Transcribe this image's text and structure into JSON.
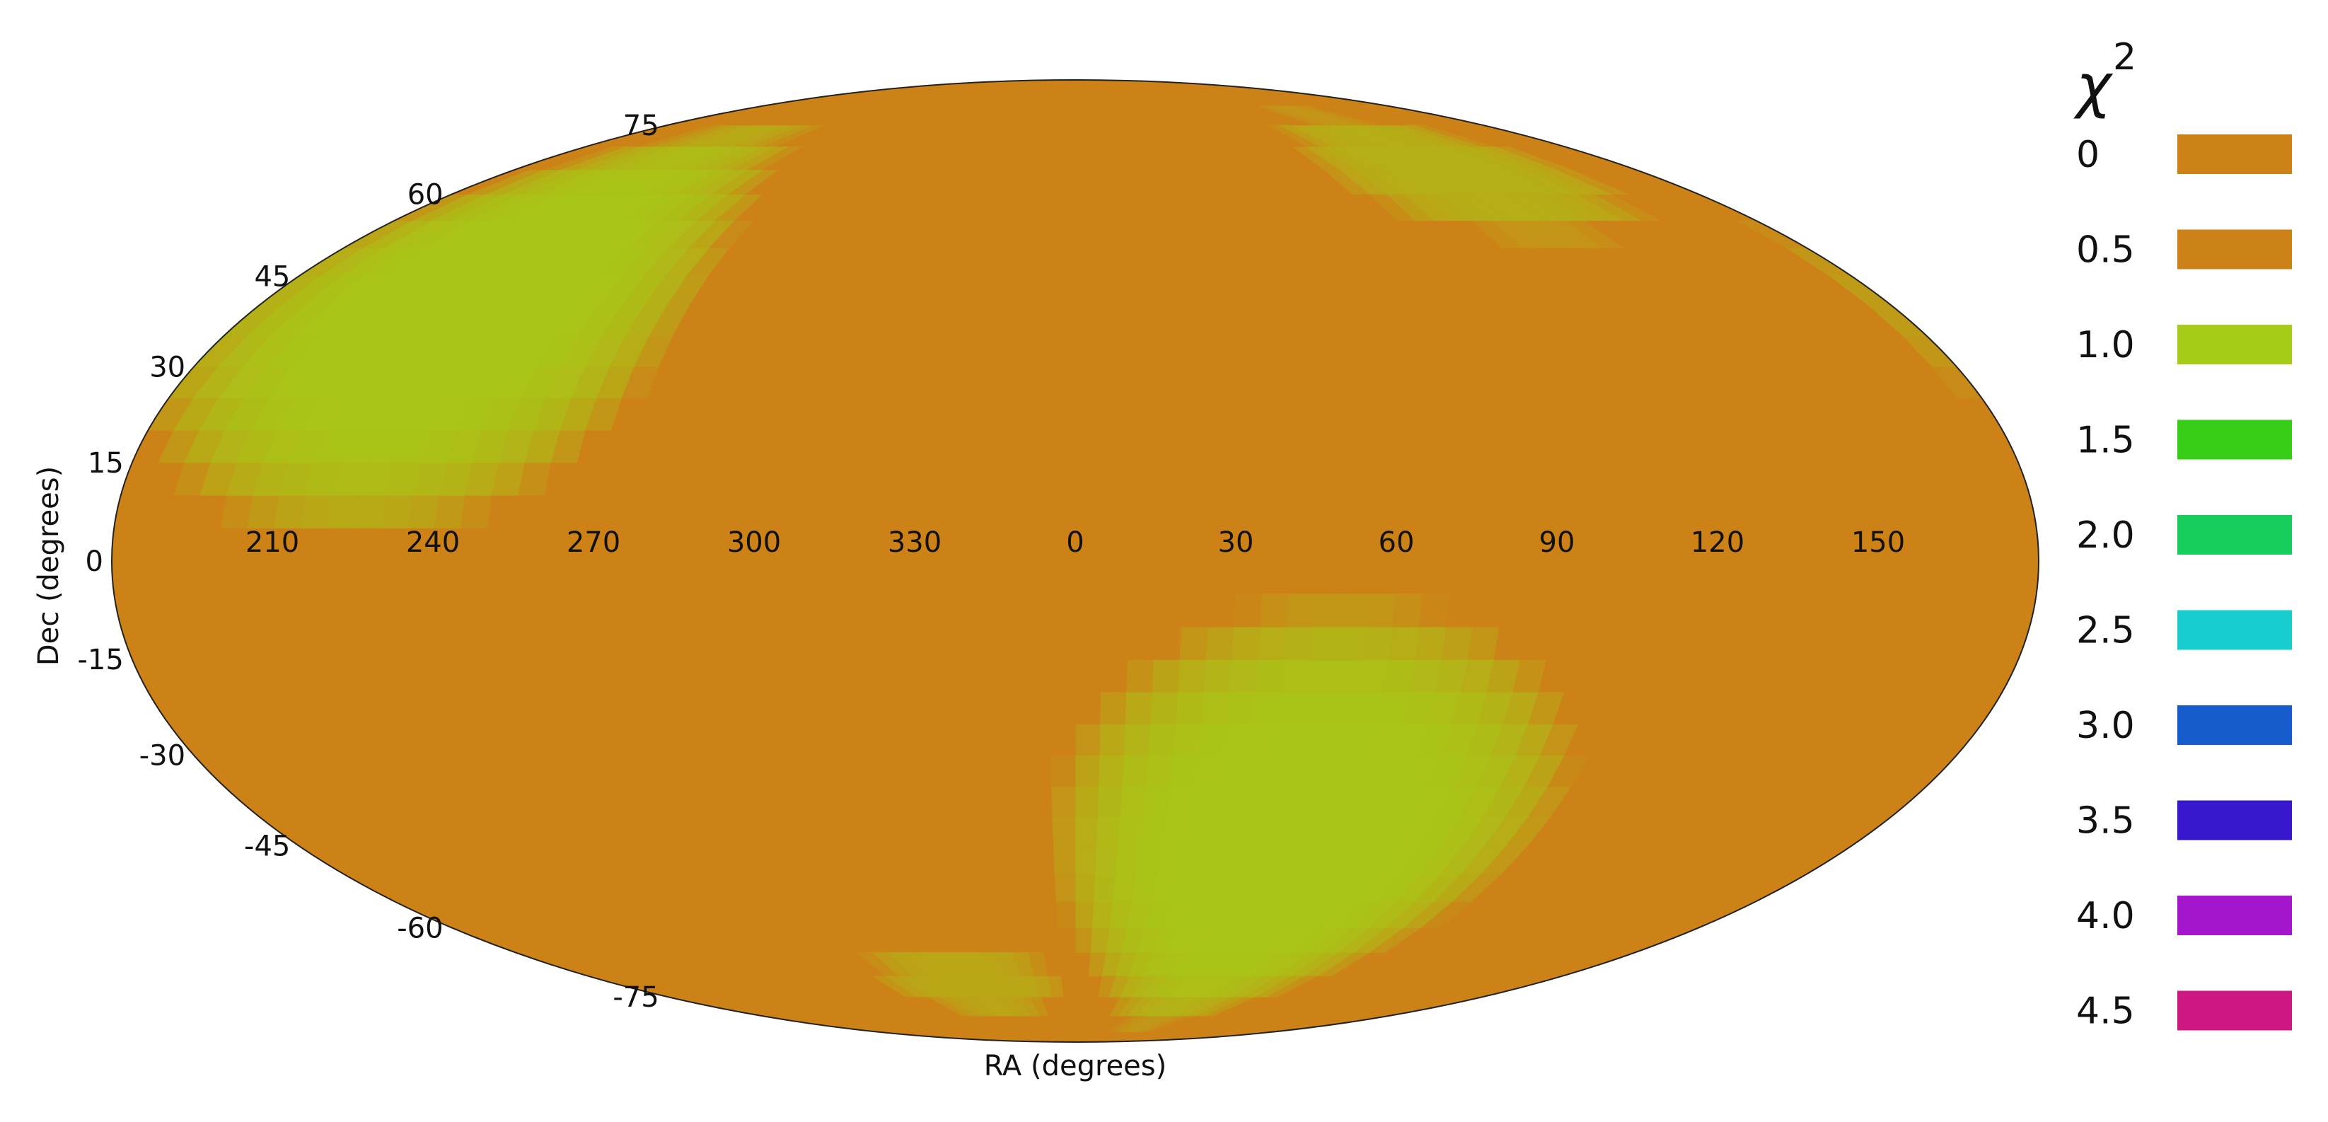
{
  "chart_data": {
    "type": "heatmap",
    "projection": "mollweide",
    "xlabel": "RA (degrees)",
    "ylabel": "Dec (degrees)",
    "ra_ticks": [
      "210",
      "240",
      "270",
      "300",
      "330",
      "0",
      "30",
      "60",
      "90",
      "120",
      "150"
    ],
    "dec_ticks": [
      "75",
      "60",
      "45",
      "30",
      "15",
      "0",
      "-15",
      "-30",
      "-45",
      "-60",
      "-75"
    ],
    "legend": {
      "title": "χ",
      "title_superscript": "2",
      "entries": [
        {
          "label": "0",
          "color": "#cd8217"
        },
        {
          "label": "0.5",
          "color": "#cd8217"
        },
        {
          "label": "1.0",
          "color": "#a5cd17"
        },
        {
          "label": "1.5",
          "color": "#38cd17"
        },
        {
          "label": "2.0",
          "color": "#17cd5c"
        },
        {
          "label": "2.5",
          "color": "#17cdcd"
        },
        {
          "label": "3.0",
          "color": "#175ccd"
        },
        {
          "label": "3.5",
          "color": "#3817cd"
        },
        {
          "label": "4.0",
          "color": "#a517cd"
        },
        {
          "label": "4.5",
          "color": "#cd1782"
        }
      ]
    },
    "regions": [
      {
        "description_value": "chi2 about 1.0",
        "ra_center": 225,
        "dec_center": 40,
        "ra_extent": 110,
        "dec_extent": 80,
        "value": 0.95
      },
      {
        "description_value": "chi2 about 1.0",
        "ra_center": 50,
        "dec_center": -45,
        "ra_extent": 120,
        "dec_extent": 85,
        "value": 0.95
      },
      {
        "description_value": "chi2 about 1.0",
        "ra_center": 120,
        "dec_center": 65,
        "ra_extent": 90,
        "dec_extent": 30,
        "value": 0.8
      },
      {
        "description_value": "chi2 about 1.0",
        "ra_center": 320,
        "dec_center": -72,
        "ra_extent": 80,
        "dec_extent": 18,
        "value": 0.75
      }
    ],
    "background_value": 0.3
  }
}
